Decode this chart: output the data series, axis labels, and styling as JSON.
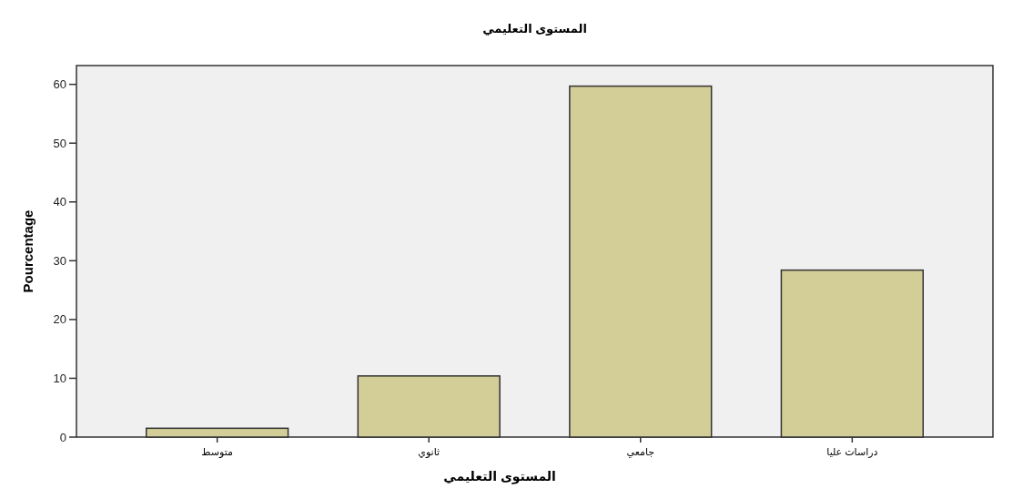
{
  "chart_data": {
    "type": "bar",
    "title": "المستوى التعليمي",
    "xlabel": "المستوى التعليمي",
    "ylabel": "Pourcentage",
    "categories": [
      "متوسط",
      "ثانوي",
      "جامعي",
      "دراسات عليا"
    ],
    "values": [
      1.5,
      10.4,
      59.7,
      28.4
    ],
    "color": "#d3cd98",
    "ylim": [
      0,
      63.2
    ],
    "yticks": [
      0,
      10,
      20,
      30,
      40,
      50,
      60
    ]
  }
}
